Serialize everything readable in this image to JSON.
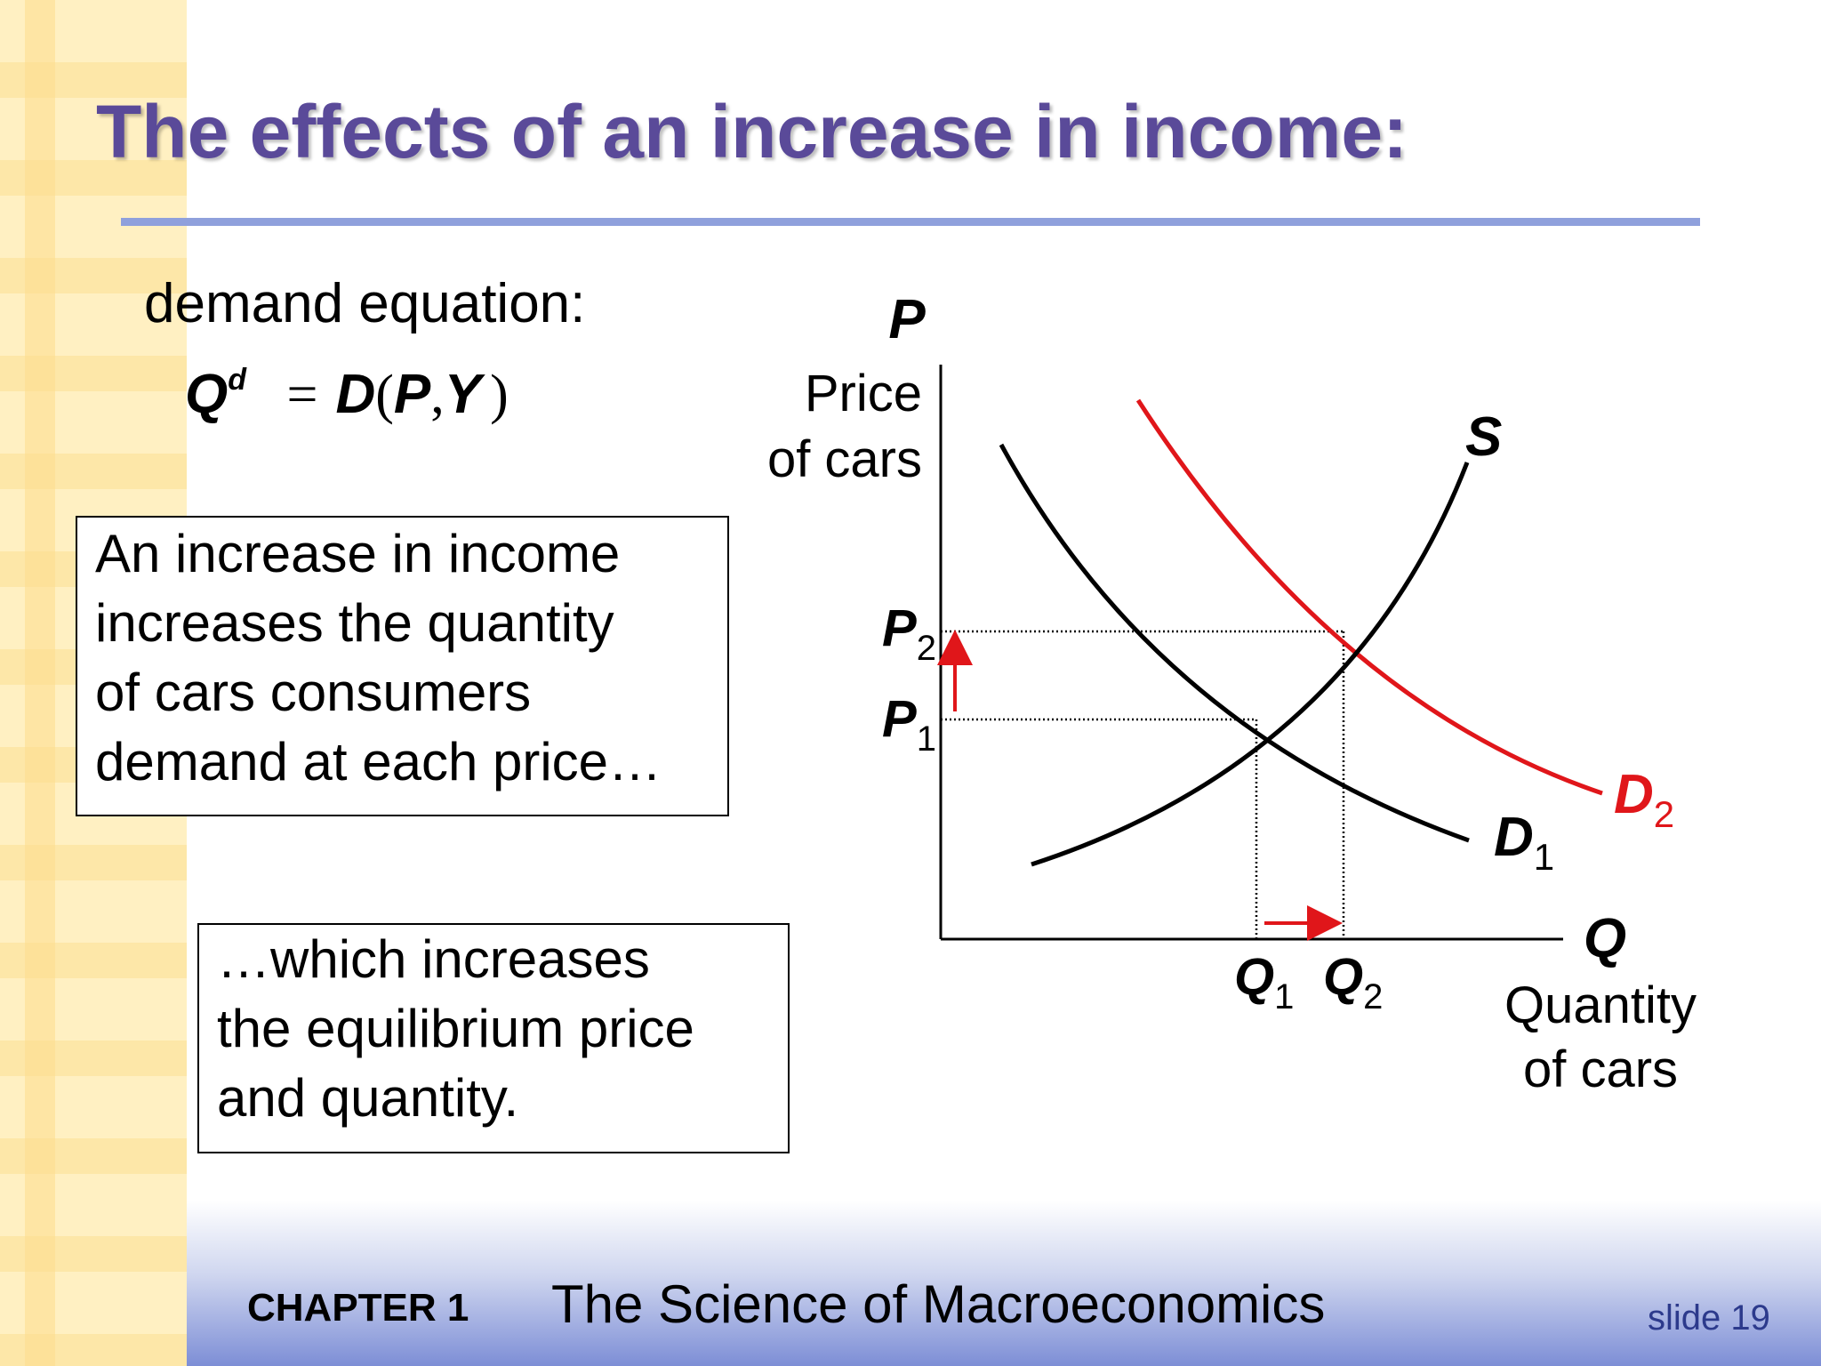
{
  "slide": {
    "title": "The effects of an increase in income:",
    "demand_label": "demand equation:",
    "equation": {
      "q": "Q",
      "sup": "d",
      "eq": "=",
      "d": "D",
      "open": "(",
      "p": "P",
      "comma": ",",
      "y": "Y",
      "close": ")"
    },
    "box1": {
      "lines": [
        "An increase in income",
        "increases the quantity",
        "of cars consumers",
        "demand at each price…"
      ]
    },
    "box2": {
      "lines": [
        "…which increases",
        "the equilibrium price",
        "and quantity."
      ]
    },
    "footer": {
      "chapter": "CHAPTER 1",
      "book": "The Science of Macroeconomics",
      "slide": "slide 19"
    }
  },
  "diagram": {
    "y_axis": {
      "symbol": "P",
      "label_line1": "Price",
      "label_line2": "of cars"
    },
    "x_axis": {
      "symbol": "Q",
      "label_line1": "Quantity",
      "label_line2": "of cars"
    },
    "curves": {
      "supply": {
        "label": "S",
        "color": "#000000"
      },
      "demand1": {
        "label": "D",
        "sub": "1",
        "color": "#000000"
      },
      "demand2": {
        "label": "D",
        "sub": "2",
        "color": "#e0161a"
      }
    },
    "prices": [
      {
        "label": "P",
        "sub": "1"
      },
      {
        "label": "P",
        "sub": "2"
      }
    ],
    "quantities": [
      {
        "label": "Q",
        "sub": "1"
      },
      {
        "label": "Q",
        "sub": "2"
      }
    ],
    "arrow_color": "#e0161a"
  }
}
